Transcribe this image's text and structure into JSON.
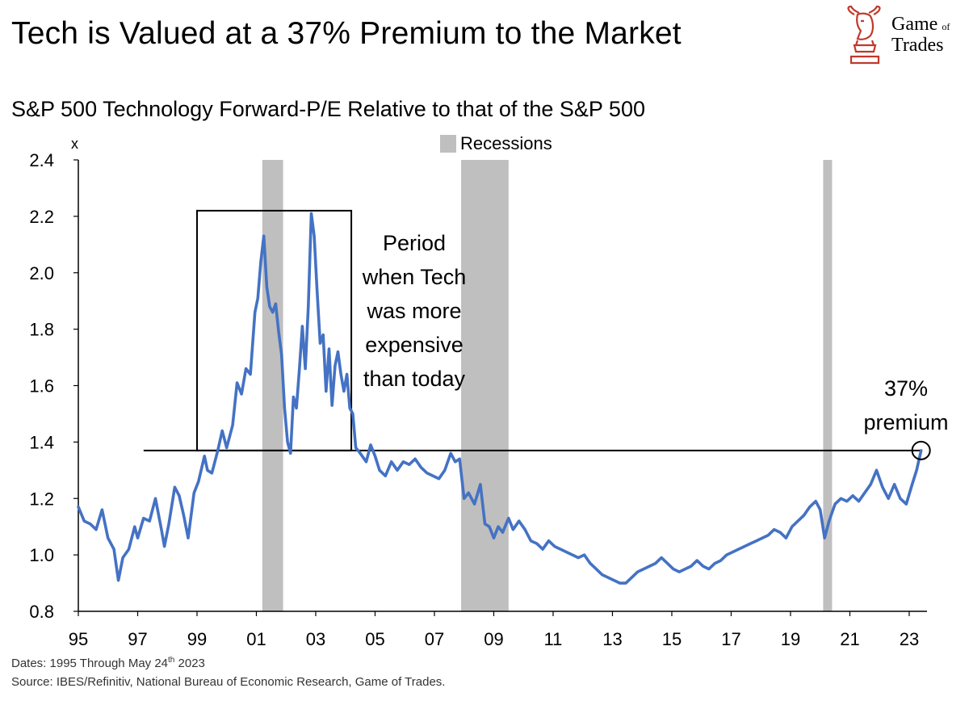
{
  "title": "Tech is Valued at a 37% Premium to the Market",
  "logo": {
    "word1": "Game",
    "word_of": "of",
    "word2": "Trades",
    "brand_color": "#c0392b"
  },
  "footer": {
    "dates_prefix": "Dates: 1995 Through May 24",
    "dates_sup": "th",
    "dates_suffix": " 2023",
    "source": "Source: IBES/Refinitiv, National Bureau of Economic Research, Game of Trades."
  },
  "chart_data": {
    "type": "line",
    "title": "S&P 500 Technology Forward-P/E Relative to that of the S&P 500",
    "ylabel": "x",
    "xlabel": "",
    "ylim": [
      0.8,
      2.4
    ],
    "xlim": [
      1995,
      2023.6
    ],
    "yticks": [
      "0.8",
      "1.0",
      "1.2",
      "1.4",
      "1.6",
      "1.8",
      "2.0",
      "2.2",
      "2.4"
    ],
    "xticks": [
      "95",
      "97",
      "99",
      "01",
      "03",
      "05",
      "07",
      "09",
      "11",
      "13",
      "15",
      "17",
      "19",
      "21",
      "23"
    ],
    "legend": {
      "label": "Recessions",
      "placement": "top-center"
    },
    "colors": {
      "line": "#4472c4",
      "recession": "#bfbfbf",
      "reference": "#000000"
    },
    "recessions": [
      {
        "start": 2001.2,
        "end": 2001.9
      },
      {
        "start": 2007.9,
        "end": 2009.5
      },
      {
        "start": 2020.1,
        "end": 2020.4
      }
    ],
    "reference_line": {
      "value": 1.37,
      "from": 1997.2,
      "to": 2023.4
    },
    "highlight_box": {
      "x0": 1999.0,
      "x1": 2004.2,
      "y0": 1.37,
      "y1": 2.22
    },
    "annotations": [
      {
        "text": [
          "Period",
          "when Tech",
          "was more",
          "expensive",
          "than today"
        ]
      },
      {
        "text": [
          "37%",
          "premium"
        ]
      }
    ],
    "series": [
      {
        "name": "Tech relative forward P/E",
        "points": [
          [
            1995.0,
            1.17
          ],
          [
            1995.2,
            1.12
          ],
          [
            1995.4,
            1.11
          ],
          [
            1995.6,
            1.09
          ],
          [
            1995.8,
            1.16
          ],
          [
            1996.0,
            1.06
          ],
          [
            1996.2,
            1.02
          ],
          [
            1996.35,
            0.91
          ],
          [
            1996.5,
            0.99
          ],
          [
            1996.7,
            1.02
          ],
          [
            1996.9,
            1.1
          ],
          [
            1997.0,
            1.06
          ],
          [
            1997.2,
            1.13
          ],
          [
            1997.4,
            1.12
          ],
          [
            1997.6,
            1.2
          ],
          [
            1997.8,
            1.09
          ],
          [
            1997.9,
            1.03
          ],
          [
            1998.05,
            1.11
          ],
          [
            1998.25,
            1.24
          ],
          [
            1998.4,
            1.21
          ],
          [
            1998.55,
            1.14
          ],
          [
            1998.7,
            1.06
          ],
          [
            1998.9,
            1.22
          ],
          [
            1999.05,
            1.26
          ],
          [
            1999.25,
            1.35
          ],
          [
            1999.35,
            1.3
          ],
          [
            1999.5,
            1.29
          ],
          [
            1999.7,
            1.37
          ],
          [
            1999.85,
            1.44
          ],
          [
            2000.0,
            1.38
          ],
          [
            2000.2,
            1.46
          ],
          [
            2000.35,
            1.61
          ],
          [
            2000.5,
            1.57
          ],
          [
            2000.65,
            1.66
          ],
          [
            2000.8,
            1.64
          ],
          [
            2000.95,
            1.86
          ],
          [
            2001.05,
            1.91
          ],
          [
            2001.15,
            2.04
          ],
          [
            2001.25,
            2.13
          ],
          [
            2001.35,
            1.95
          ],
          [
            2001.45,
            1.88
          ],
          [
            2001.55,
            1.86
          ],
          [
            2001.65,
            1.89
          ],
          [
            2001.75,
            1.79
          ],
          [
            2001.85,
            1.71
          ],
          [
            2001.95,
            1.52
          ],
          [
            2002.05,
            1.4
          ],
          [
            2002.15,
            1.36
          ],
          [
            2002.25,
            1.56
          ],
          [
            2002.35,
            1.52
          ],
          [
            2002.45,
            1.66
          ],
          [
            2002.55,
            1.81
          ],
          [
            2002.65,
            1.66
          ],
          [
            2002.75,
            1.88
          ],
          [
            2002.85,
            2.21
          ],
          [
            2002.95,
            2.13
          ],
          [
            2003.05,
            1.93
          ],
          [
            2003.15,
            1.75
          ],
          [
            2003.25,
            1.78
          ],
          [
            2003.35,
            1.58
          ],
          [
            2003.45,
            1.73
          ],
          [
            2003.55,
            1.53
          ],
          [
            2003.65,
            1.67
          ],
          [
            2003.75,
            1.72
          ],
          [
            2003.85,
            1.64
          ],
          [
            2003.95,
            1.58
          ],
          [
            2004.05,
            1.64
          ],
          [
            2004.15,
            1.52
          ],
          [
            2004.25,
            1.5
          ],
          [
            2004.35,
            1.38
          ],
          [
            2004.5,
            1.36
          ],
          [
            2004.7,
            1.33
          ],
          [
            2004.85,
            1.39
          ],
          [
            2005.0,
            1.35
          ],
          [
            2005.15,
            1.3
          ],
          [
            2005.35,
            1.28
          ],
          [
            2005.55,
            1.33
          ],
          [
            2005.75,
            1.3
          ],
          [
            2005.95,
            1.33
          ],
          [
            2006.15,
            1.32
          ],
          [
            2006.35,
            1.34
          ],
          [
            2006.55,
            1.31
          ],
          [
            2006.75,
            1.29
          ],
          [
            2006.95,
            1.28
          ],
          [
            2007.15,
            1.27
          ],
          [
            2007.35,
            1.3
          ],
          [
            2007.55,
            1.36
          ],
          [
            2007.7,
            1.33
          ],
          [
            2007.85,
            1.34
          ],
          [
            2008.0,
            1.2
          ],
          [
            2008.15,
            1.22
          ],
          [
            2008.35,
            1.18
          ],
          [
            2008.55,
            1.25
          ],
          [
            2008.7,
            1.11
          ],
          [
            2008.85,
            1.1
          ],
          [
            2009.0,
            1.06
          ],
          [
            2009.15,
            1.1
          ],
          [
            2009.3,
            1.08
          ],
          [
            2009.5,
            1.13
          ],
          [
            2009.65,
            1.09
          ],
          [
            2009.85,
            1.12
          ],
          [
            2010.05,
            1.09
          ],
          [
            2010.25,
            1.05
          ],
          [
            2010.45,
            1.04
          ],
          [
            2010.65,
            1.02
          ],
          [
            2010.85,
            1.05
          ],
          [
            2011.05,
            1.03
          ],
          [
            2011.25,
            1.02
          ],
          [
            2011.45,
            1.01
          ],
          [
            2011.65,
            1.0
          ],
          [
            2011.85,
            0.99
          ],
          [
            2012.05,
            1.0
          ],
          [
            2012.25,
            0.97
          ],
          [
            2012.45,
            0.95
          ],
          [
            2012.65,
            0.93
          ],
          [
            2012.85,
            0.92
          ],
          [
            2013.05,
            0.91
          ],
          [
            2013.25,
            0.9
          ],
          [
            2013.45,
            0.9
          ],
          [
            2013.65,
            0.92
          ],
          [
            2013.85,
            0.94
          ],
          [
            2014.05,
            0.95
          ],
          [
            2014.25,
            0.96
          ],
          [
            2014.45,
            0.97
          ],
          [
            2014.65,
            0.99
          ],
          [
            2014.85,
            0.97
          ],
          [
            2015.05,
            0.95
          ],
          [
            2015.25,
            0.94
          ],
          [
            2015.45,
            0.95
          ],
          [
            2015.65,
            0.96
          ],
          [
            2015.85,
            0.98
          ],
          [
            2016.05,
            0.96
          ],
          [
            2016.25,
            0.95
          ],
          [
            2016.45,
            0.97
          ],
          [
            2016.65,
            0.98
          ],
          [
            2016.85,
            1.0
          ],
          [
            2017.05,
            1.01
          ],
          [
            2017.25,
            1.02
          ],
          [
            2017.45,
            1.03
          ],
          [
            2017.65,
            1.04
          ],
          [
            2017.85,
            1.05
          ],
          [
            2018.05,
            1.06
          ],
          [
            2018.25,
            1.07
          ],
          [
            2018.45,
            1.09
          ],
          [
            2018.65,
            1.08
          ],
          [
            2018.85,
            1.06
          ],
          [
            2019.05,
            1.1
          ],
          [
            2019.25,
            1.12
          ],
          [
            2019.45,
            1.14
          ],
          [
            2019.65,
            1.17
          ],
          [
            2019.85,
            1.19
          ],
          [
            2020.0,
            1.16
          ],
          [
            2020.15,
            1.06
          ],
          [
            2020.3,
            1.12
          ],
          [
            2020.5,
            1.18
          ],
          [
            2020.7,
            1.2
          ],
          [
            2020.9,
            1.19
          ],
          [
            2021.1,
            1.21
          ],
          [
            2021.3,
            1.19
          ],
          [
            2021.5,
            1.22
          ],
          [
            2021.7,
            1.25
          ],
          [
            2021.9,
            1.3
          ],
          [
            2022.1,
            1.24
          ],
          [
            2022.3,
            1.2
          ],
          [
            2022.5,
            1.25
          ],
          [
            2022.7,
            1.2
          ],
          [
            2022.9,
            1.18
          ],
          [
            2023.1,
            1.25
          ],
          [
            2023.25,
            1.3
          ],
          [
            2023.4,
            1.37
          ]
        ]
      }
    ]
  }
}
